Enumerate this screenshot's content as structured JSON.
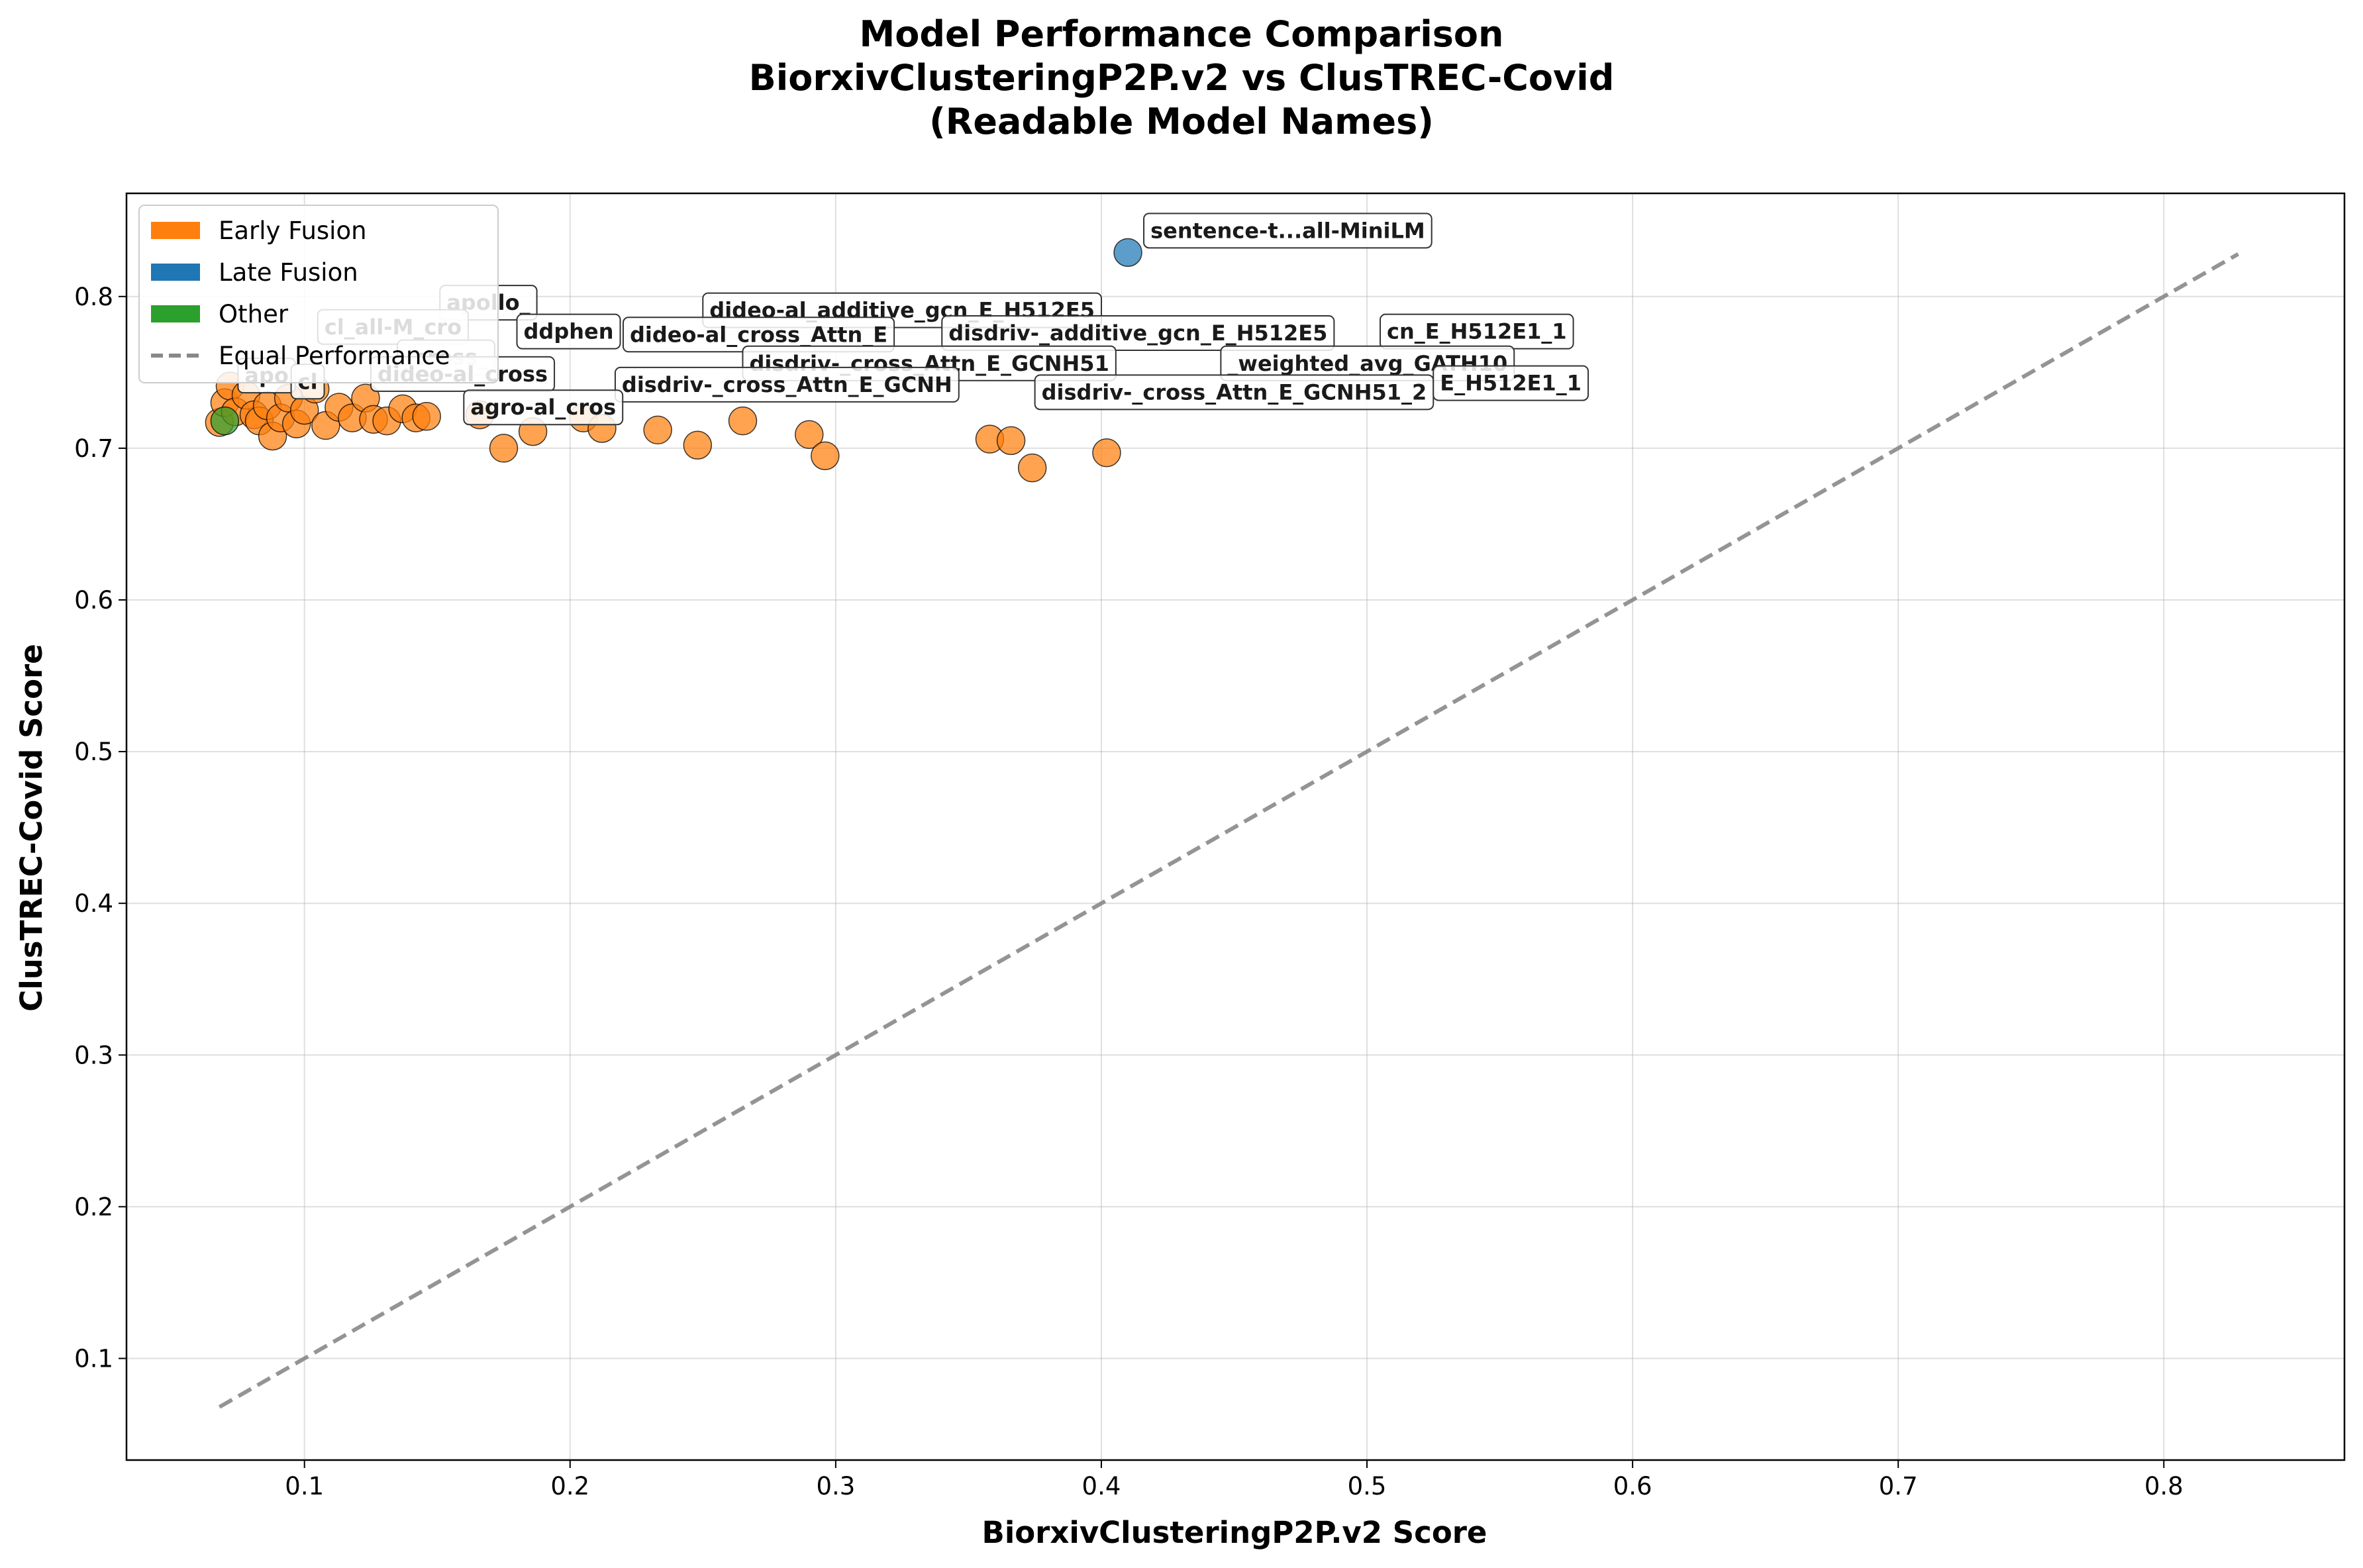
{
  "chart_data": {
    "type": "scatter",
    "title": [
      "Model Performance Comparison",
      "BiorxivClusteringP2P.v2 vs ClusTREC-Covid",
      "(Readable Model Names)"
    ],
    "xlabel": "BiorxivClusteringP2P.v2 Score",
    "ylabel": "ClusTREC-Covid Score",
    "xlim": [
      0.033,
      0.868
    ],
    "ylim": [
      0.033,
      0.868
    ],
    "xticks": [
      0.1,
      0.2,
      0.3,
      0.4,
      0.5,
      0.6,
      0.7,
      0.8
    ],
    "yticks": [
      0.1,
      0.2,
      0.3,
      0.4,
      0.5,
      0.6,
      0.7,
      0.8
    ],
    "grid": true,
    "legend_position": "top-left",
    "legend": [
      {
        "label": "Early Fusion",
        "kind": "patch",
        "color": "#ff7f0e"
      },
      {
        "label": "Late Fusion",
        "kind": "patch",
        "color": "#1f77b4"
      },
      {
        "label": "Other",
        "kind": "patch",
        "color": "#2ca02c"
      },
      {
        "label": "Equal Performance",
        "kind": "line",
        "color": "#888888"
      }
    ],
    "reference_line": {
      "name": "Equal Performance",
      "x": [
        0.068,
        0.828
      ],
      "y": [
        0.068,
        0.828
      ],
      "style": "dashed",
      "color": "#888888"
    },
    "series": [
      {
        "name": "Early Fusion",
        "color": "#ff7f0e",
        "points": [
          {
            "x": 0.068,
            "y": 0.717
          },
          {
            "x": 0.07,
            "y": 0.73
          },
          {
            "x": 0.072,
            "y": 0.741
          },
          {
            "x": 0.074,
            "y": 0.724
          },
          {
            "x": 0.078,
            "y": 0.735
          },
          {
            "x": 0.081,
            "y": 0.722
          },
          {
            "x": 0.083,
            "y": 0.718
          },
          {
            "x": 0.086,
            "y": 0.728
          },
          {
            "x": 0.088,
            "y": 0.708
          },
          {
            "x": 0.091,
            "y": 0.72
          },
          {
            "x": 0.094,
            "y": 0.733
          },
          {
            "x": 0.097,
            "y": 0.716
          },
          {
            "x": 0.1,
            "y": 0.725
          },
          {
            "x": 0.104,
            "y": 0.739
          },
          {
            "x": 0.108,
            "y": 0.715
          },
          {
            "x": 0.113,
            "y": 0.727
          },
          {
            "x": 0.118,
            "y": 0.72
          },
          {
            "x": 0.123,
            "y": 0.733
          },
          {
            "x": 0.126,
            "y": 0.719
          },
          {
            "x": 0.131,
            "y": 0.718
          },
          {
            "x": 0.137,
            "y": 0.726
          },
          {
            "x": 0.142,
            "y": 0.72
          },
          {
            "x": 0.146,
            "y": 0.721
          },
          {
            "x": 0.166,
            "y": 0.722
          },
          {
            "x": 0.175,
            "y": 0.7
          },
          {
            "x": 0.186,
            "y": 0.711
          },
          {
            "x": 0.205,
            "y": 0.72
          },
          {
            "x": 0.212,
            "y": 0.713
          },
          {
            "x": 0.233,
            "y": 0.712
          },
          {
            "x": 0.248,
            "y": 0.702
          },
          {
            "x": 0.265,
            "y": 0.718
          },
          {
            "x": 0.29,
            "y": 0.709
          },
          {
            "x": 0.296,
            "y": 0.695
          },
          {
            "x": 0.358,
            "y": 0.706
          },
          {
            "x": 0.366,
            "y": 0.705
          },
          {
            "x": 0.374,
            "y": 0.687
          },
          {
            "x": 0.402,
            "y": 0.697
          }
        ]
      },
      {
        "name": "Late Fusion",
        "color": "#1f77b4",
        "points": [
          {
            "x": 0.41,
            "y": 0.829
          }
        ]
      },
      {
        "name": "Other",
        "color": "#2ca02c",
        "points": [
          {
            "x": 0.07,
            "y": 0.718
          }
        ]
      }
    ],
    "annotations": [
      {
        "text": "sentence-t...all-MiniLM",
        "x": 0.41,
        "y": 0.829,
        "dx": 34,
        "dy": -22
      },
      {
        "text": "apollo_",
        "x": 0.146,
        "y": 0.785,
        "dx": 30,
        "dy": -14
      },
      {
        "text": "dideo-al_additive_gcn_E_H512E5",
        "x": 0.245,
        "y": 0.78,
        "dx": 30,
        "dy": -14
      },
      {
        "text": "cl_all-M_cro",
        "x": 0.1,
        "y": 0.769,
        "dx": 30,
        "dy": -14
      },
      {
        "text": "ddphen",
        "x": 0.175,
        "y": 0.766,
        "dx": 30,
        "dy": -14
      },
      {
        "text": "dideo-al_cross_Attn_E",
        "x": 0.215,
        "y": 0.764,
        "dx": 30,
        "dy": -14
      },
      {
        "text": "disdriv-_additive_gcn_E_H512E5",
        "x": 0.335,
        "y": 0.765,
        "dx": 30,
        "dy": -14
      },
      {
        "text": "cn_E_H512E1_1",
        "x": 0.5,
        "y": 0.766,
        "dx": 30,
        "dy": -14
      },
      {
        "text": "_cross_",
        "x": 0.13,
        "y": 0.749,
        "dx": 30,
        "dy": -14
      },
      {
        "text": "disdriv-_cross_Attn_E_GCNH51",
        "x": 0.26,
        "y": 0.745,
        "dx": 30,
        "dy": -14
      },
      {
        "text": "_weighted_avg_GATH10",
        "x": 0.44,
        "y": 0.745,
        "dx": 30,
        "dy": -14
      },
      {
        "text": "dideo-al_cross",
        "x": 0.12,
        "y": 0.738,
        "dx": 30,
        "dy": -14
      },
      {
        "text": "disdriv-_cross_Attn_E_GCNH",
        "x": 0.212,
        "y": 0.731,
        "dx": 30,
        "dy": -14
      },
      {
        "text": "disdriv-_cross_Attn_E_GCNH51_2",
        "x": 0.37,
        "y": 0.726,
        "dx": 30,
        "dy": -14
      },
      {
        "text": "E_H512E1_1",
        "x": 0.52,
        "y": 0.732,
        "dx": 30,
        "dy": -14
      },
      {
        "text": "apo",
        "x": 0.07,
        "y": 0.737,
        "dx": 30,
        "dy": -14
      },
      {
        "text": "cl",
        "x": 0.09,
        "y": 0.733,
        "dx": 30,
        "dy": -14
      },
      {
        "text": "agro-al_cros",
        "x": 0.155,
        "y": 0.716,
        "dx": 30,
        "dy": -14
      }
    ]
  }
}
